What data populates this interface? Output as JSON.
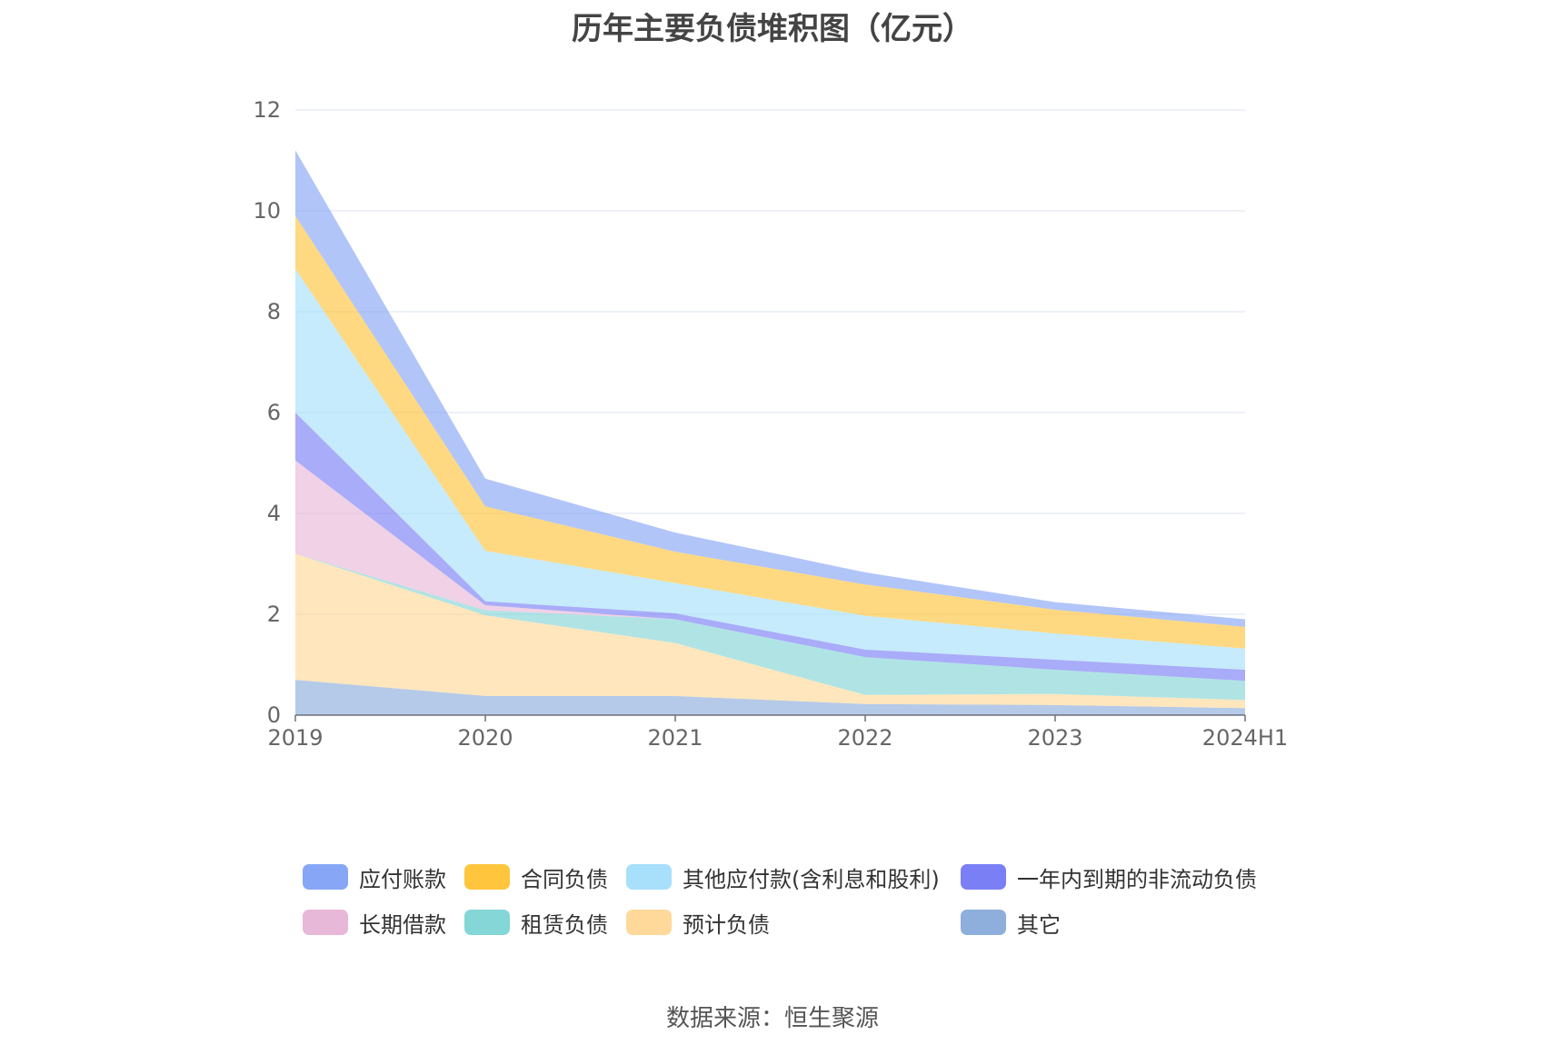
{
  "source_label": "数据来源：恒生聚源",
  "chart_data": {
    "type": "area",
    "stacked": true,
    "title": "历年主要负债堆积图（亿元）",
    "xlabel": "",
    "ylabel": "",
    "ylim": [
      0,
      12
    ],
    "yticks": [
      0,
      2,
      4,
      6,
      8,
      10,
      12
    ],
    "grid": true,
    "legend_position": "bottom",
    "categories": [
      "2019",
      "2020",
      "2021",
      "2022",
      "2023",
      "2024H1"
    ],
    "series": [
      {
        "name": "其它",
        "color": "#8eaedb",
        "values": [
          0.7,
          0.38,
          0.38,
          0.22,
          0.2,
          0.14
        ]
      },
      {
        "name": "预计负债",
        "color": "#ffd99a",
        "values": [
          2.5,
          1.6,
          1.05,
          0.18,
          0.22,
          0.16
        ]
      },
      {
        "name": "租赁负债",
        "color": "#85d6d6",
        "values": [
          0.0,
          0.1,
          0.47,
          0.75,
          0.48,
          0.38
        ]
      },
      {
        "name": "长期借款",
        "color": "#e8b8d8",
        "values": [
          1.85,
          0.1,
          0.0,
          0.0,
          0.0,
          0.0
        ]
      },
      {
        "name": "一年内到期的非流动负债",
        "color": "#7b7ff5",
        "values": [
          0.95,
          0.08,
          0.12,
          0.15,
          0.2,
          0.22
        ]
      },
      {
        "name": "其他应付款(含利息和股利)",
        "color": "#a8e0fb",
        "values": [
          2.85,
          1.0,
          0.6,
          0.67,
          0.52,
          0.42
        ]
      },
      {
        "name": "合同负债",
        "color": "#ffc53d",
        "values": [
          1.05,
          0.88,
          0.62,
          0.62,
          0.47,
          0.43
        ]
      },
      {
        "name": "应付账款",
        "color": "#87a6f5",
        "values": [
          1.3,
          0.55,
          0.38,
          0.24,
          0.15,
          0.15
        ]
      }
    ],
    "legend_order": [
      "应付账款",
      "合同负债",
      "其他应付款(含利息和股利)",
      "一年内到期的非流动负债",
      "长期借款",
      "租赁负债",
      "预计负债",
      "其它"
    ]
  }
}
